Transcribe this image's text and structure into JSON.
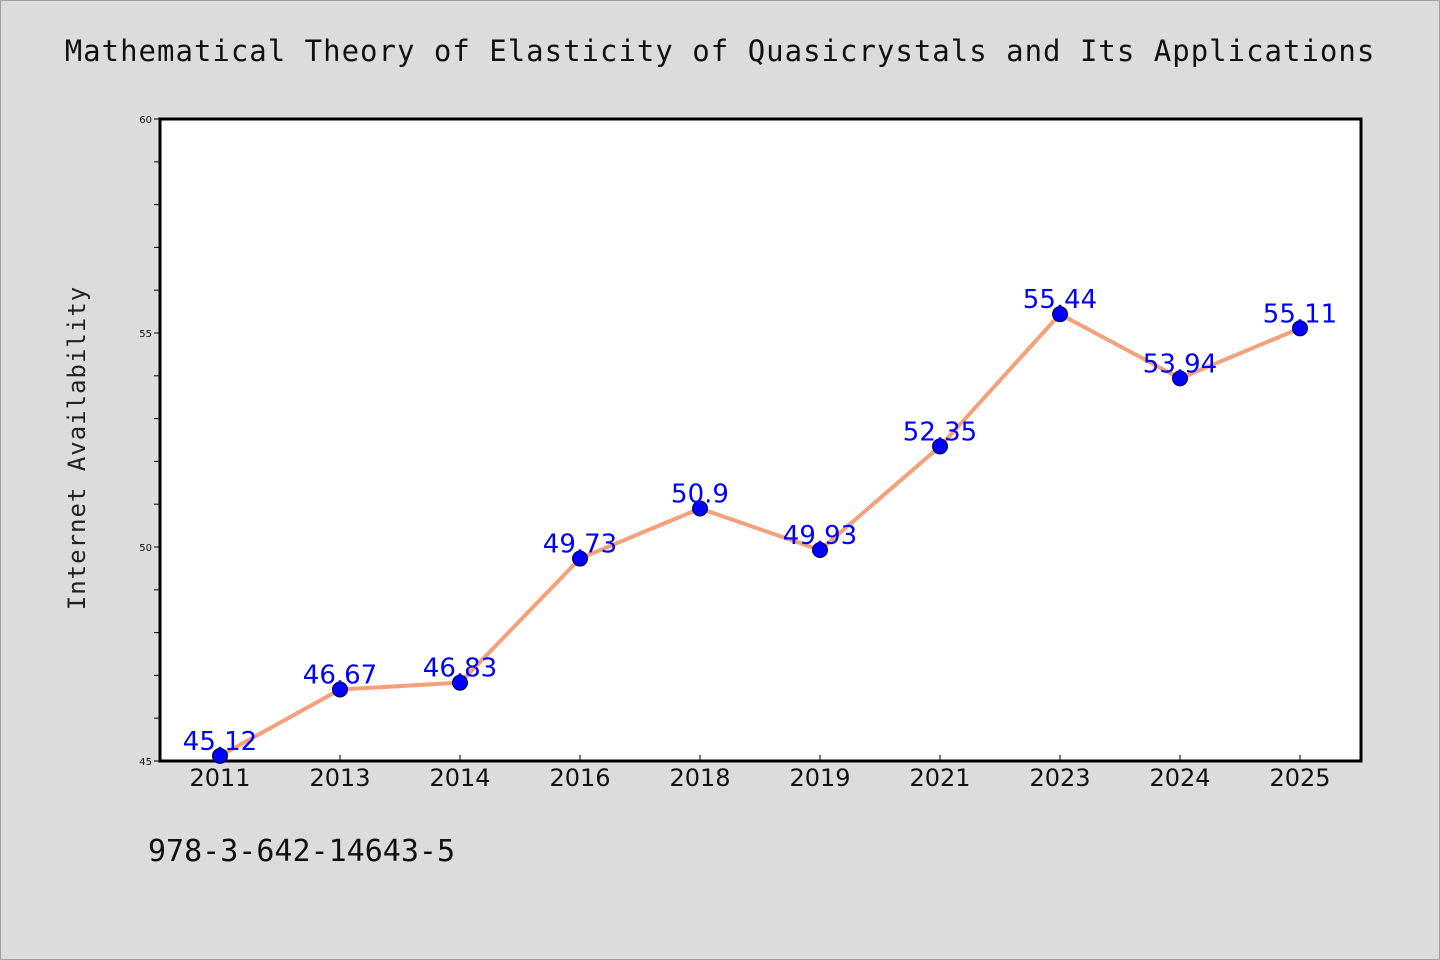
{
  "chart_data": {
    "type": "line",
    "title": "Mathematical Theory of Elasticity of Quasicrystals and Its Applications",
    "xlabel": "",
    "ylabel": "Internet Availability",
    "categories": [
      "2011",
      "2013",
      "2014",
      "2016",
      "2018",
      "2019",
      "2021",
      "2023",
      "2024",
      "2025"
    ],
    "values": [
      45.12,
      46.67,
      46.83,
      49.73,
      50.9,
      49.93,
      52.35,
      55.44,
      53.94,
      55.11
    ],
    "data_labels": [
      "45.12",
      "46.67",
      "46.83",
      "49.73",
      "50.9",
      "49.93",
      "52.35",
      "55.44",
      "53.94",
      "55.11"
    ],
    "ylim": [
      45,
      60
    ],
    "yticks": [
      "45",
      "50",
      "55",
      "60"
    ],
    "line_color": "#f4a07a",
    "marker_color": "#0000ff",
    "label_color": "#0000ff",
    "grid": false,
    "legend": false
  },
  "footer": {
    "code": "978-3-642-14643-5"
  }
}
